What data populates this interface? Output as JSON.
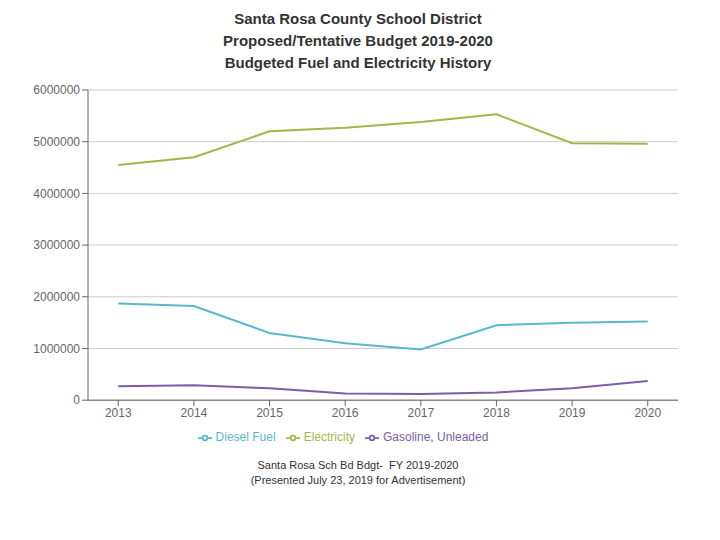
{
  "chart_data": {
    "type": "line",
    "title": "Santa Rosa County School District\nProposed/Tentative Budget 2019-2020\nBudgeted Fuel and Electricity History",
    "annotations": [
      "Santa Rosa Sch Bd Bdgt-  FY 2019-2020\n(Presented July 23, 2019 for Advertisement)"
    ],
    "x": [
      2013,
      2014,
      2015,
      2016,
      2017,
      2018,
      2019,
      2020
    ],
    "series": [
      {
        "name": "Electricity",
        "color": "#9eb84a",
        "values": [
          4550000,
          4700000,
          5200000,
          5270000,
          5380000,
          5530000,
          4970000,
          4960000
        ]
      },
      {
        "name": "Gasoline, Unleaded",
        "color": "#7b5ea7",
        "values": [
          270000,
          290000,
          230000,
          130000,
          120000,
          150000,
          230000,
          370000
        ]
      },
      {
        "name": "Diesel Fuel",
        "color": "#5ab8cc",
        "values": [
          1870000,
          1820000,
          1300000,
          1100000,
          980000,
          1450000,
          1500000,
          1520000
        ]
      }
    ],
    "xlim": [
      2012.6,
      2020.4
    ],
    "xticks": [
      2013,
      2014,
      2015,
      2016,
      2017,
      2018,
      2019,
      2020
    ],
    "ylim": [
      0,
      6000000
    ],
    "yticks": [
      0,
      1000000,
      2000000,
      3000000,
      4000000,
      5000000,
      6000000
    ],
    "grid": true,
    "legend": "bottom"
  }
}
